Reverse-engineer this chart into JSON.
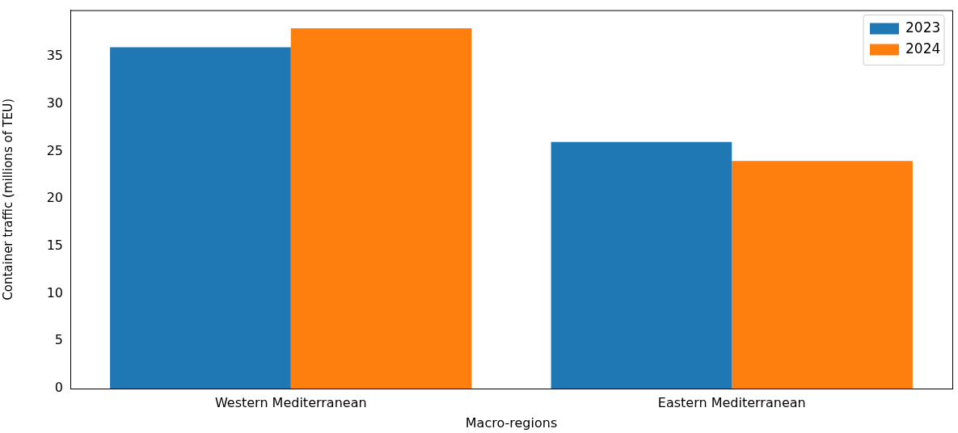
{
  "chart_data": {
    "type": "bar",
    "xlabel": "Macro-regions",
    "ylabel": "Container traffic (millions of TEU)",
    "categories": [
      "Western Mediterranean",
      "Eastern Mediterranean"
    ],
    "series": [
      {
        "name": "2023",
        "color": "#1f77b4",
        "values": [
          36,
          26
        ]
      },
      {
        "name": "2024",
        "color": "#ff7f0e",
        "values": [
          38,
          24
        ]
      }
    ],
    "ylim": [
      0,
      39.9
    ],
    "yticks": [
      0,
      5,
      10,
      15,
      20,
      25,
      30,
      35
    ],
    "grid": false,
    "legend": "top right"
  }
}
